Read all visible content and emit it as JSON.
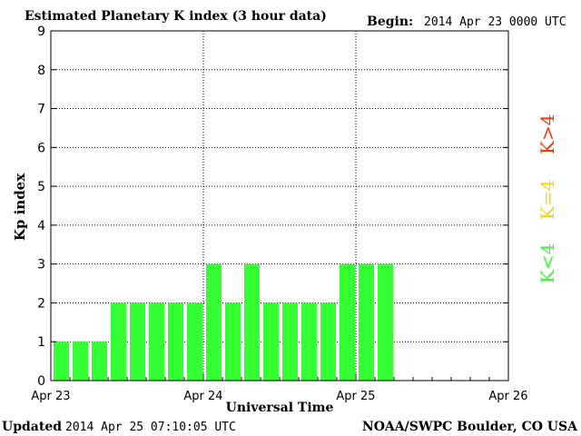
{
  "header": {
    "title": "Estimated Planetary K index (3 hour data)",
    "begin_label": "Begin:",
    "begin_value": "2014 Apr 23 0000 UTC"
  },
  "footer": {
    "updated_label": "Updated",
    "updated_value": "2014 Apr 25 07:10:05 UTC",
    "source": "NOAA/SWPC Boulder, CO USA"
  },
  "legend": {
    "items": [
      {
        "label": "K<4",
        "color": "#33ff33"
      },
      {
        "label": "K=4",
        "color": "#ffd400"
      },
      {
        "label": "K>4",
        "color": "#ff3300"
      }
    ]
  },
  "chart_data": {
    "type": "bar",
    "title": "Estimated Planetary K index (3 hour data)",
    "xlabel": "Universal Time",
    "ylabel": "Kp index",
    "ylim": [
      0,
      9
    ],
    "y_ticks": [
      0,
      1,
      2,
      3,
      4,
      5,
      6,
      7,
      8,
      9
    ],
    "x_range_hours": [
      0,
      72
    ],
    "x_ticks": [
      {
        "label": "Apr 23",
        "hour": 0
      },
      {
        "label": "Apr 24",
        "hour": 24
      },
      {
        "label": "Apr 25",
        "hour": 48
      },
      {
        "label": "Apr 26",
        "hour": 72
      }
    ],
    "grid": "dotted",
    "bar_color": "#33ff33",
    "categories": [
      "00-03",
      "03-06",
      "06-09",
      "09-12",
      "12-15",
      "15-18",
      "18-21",
      "21-24",
      "00-03",
      "03-06",
      "06-09",
      "09-12",
      "12-15",
      "15-18",
      "18-21",
      "21-24",
      "00-03",
      "03-06"
    ],
    "values": [
      1,
      1,
      1,
      2,
      2,
      2,
      2,
      2,
      3,
      2,
      3,
      2,
      2,
      2,
      2,
      3,
      3,
      3
    ]
  }
}
